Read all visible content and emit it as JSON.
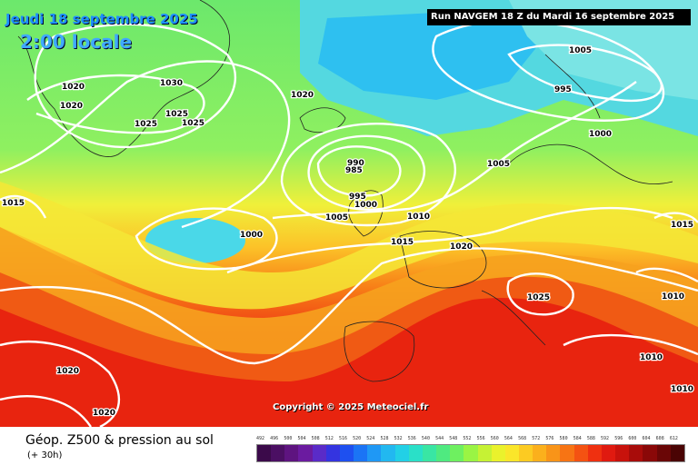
{
  "header": {
    "date": "Jeudi 18 septembre 2025",
    "time": "2:00 locale",
    "run": "Run NAVGEM 18 Z du Mardi 16 septembre 2025"
  },
  "copyright": "Copyright © 2025 Meteociel.fr",
  "footer": {
    "title": "Géop. Z500 & pression au sol",
    "subtitle": "(+ 30h)"
  },
  "isobar_labels": [
    "1020",
    "1020",
    "1030",
    "1025",
    "1025",
    "1025",
    "1020",
    "1005",
    "995",
    "1000",
    "990",
    "985",
    "995",
    "1000",
    "1005",
    "1010",
    "1005",
    "1000",
    "1015",
    "1015",
    "1020",
    "1015",
    "1025",
    "1010",
    "1010",
    "1010",
    "1020",
    "1020"
  ],
  "scale": {
    "values": [
      "492",
      "496",
      "500",
      "504",
      "508",
      "512",
      "516",
      "520",
      "524",
      "528",
      "532",
      "536",
      "540",
      "544",
      "548",
      "552",
      "556",
      "560",
      "564",
      "568",
      "572",
      "576",
      "580",
      "584",
      "588",
      "592",
      "596",
      "600",
      "604",
      "608",
      "612"
    ],
    "colors": [
      "#3b0a4a",
      "#4b0f63",
      "#5e1480",
      "#6b1ba0",
      "#5a2bc8",
      "#3434e0",
      "#1e50f0",
      "#1b74f5",
      "#1f98f5",
      "#22b8f0",
      "#22d0e6",
      "#2ae0c8",
      "#39e6a4",
      "#4fea80",
      "#6ef060",
      "#9af444",
      "#c6f234",
      "#eaf22c",
      "#fae62a",
      "#fccb22",
      "#fbb01c",
      "#f99418",
      "#f77414",
      "#f45212",
      "#ef3010",
      "#e01a10",
      "#c8120c",
      "#a80c0a",
      "#8a0808",
      "#6a0606",
      "#4a0404"
    ]
  }
}
